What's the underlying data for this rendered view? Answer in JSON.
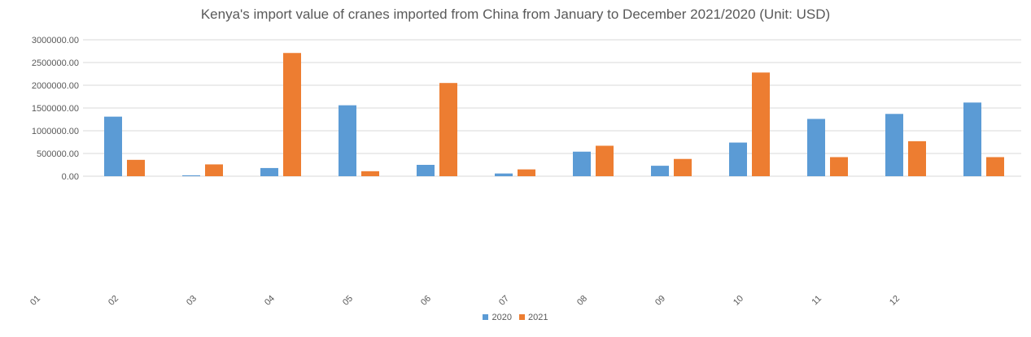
{
  "chart_data": {
    "type": "bar",
    "title": "Kenya's import value of cranes imported from China from January to December 2021/2020 (Unit: USD)",
    "categories": [
      "01",
      "02",
      "03",
      "04",
      "05",
      "06",
      "07",
      "08",
      "09",
      "10",
      "11",
      "12"
    ],
    "series": [
      {
        "name": "2020",
        "color": "#5b9bd5",
        "values": [
          1310000,
          20000,
          180000,
          1560000,
          250000,
          60000,
          540000,
          230000,
          740000,
          1260000,
          1370000,
          1620000
        ]
      },
      {
        "name": "2021",
        "color": "#ed7d31",
        "values": [
          360000,
          260000,
          2710000,
          110000,
          2050000,
          150000,
          670000,
          380000,
          2280000,
          420000,
          770000,
          420000
        ]
      }
    ],
    "y_ticks": [
      "0.00",
      "500000.00",
      "1000000.00",
      "1500000.00",
      "2000000.00",
      "2500000.00",
      "3000000.00"
    ],
    "ylim": [
      0,
      3000000
    ],
    "grid": true,
    "legend_position": "bottom"
  }
}
